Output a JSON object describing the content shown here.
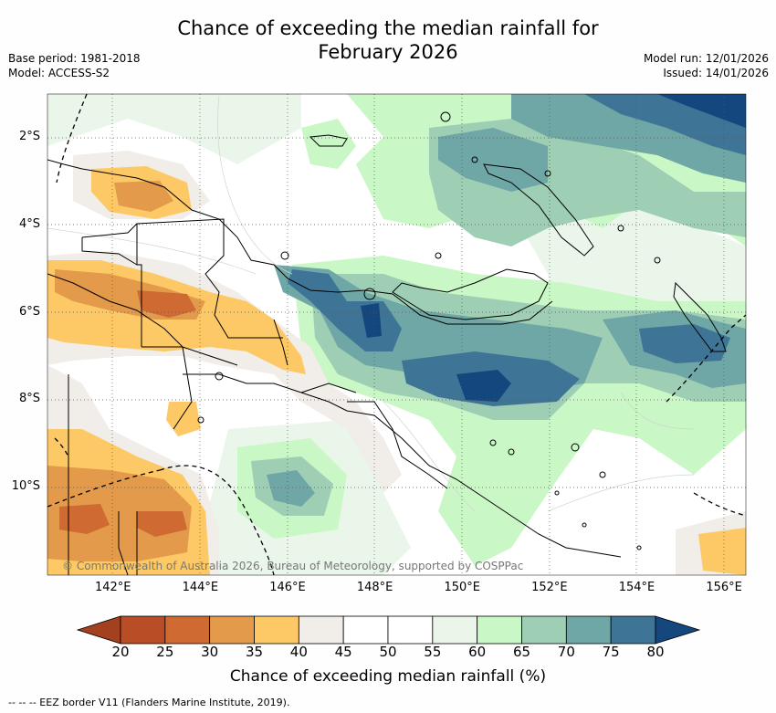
{
  "title_line1": "Chance of exceeding the median rainfall for",
  "title_line2": "February 2026",
  "base_period": "Base period: 1981-2018",
  "model": "Model: ACCESS-S2",
  "model_run": "Model run: 12/01/2026",
  "issued": "Issued: 14/01/2026",
  "copyright": "© Commonwealth of Australia 2026, Bureau of Meteorology, supported by COSPPac",
  "footer": "--  --  -- EEZ border V11 (Flanders Marine Institute, 2019).",
  "map": {
    "lon_range": [
      140.5,
      156.5
    ],
    "lat_range": [
      -12.0,
      -1.0
    ],
    "lat_ticks": [
      {
        "value": -2,
        "label": "2°S"
      },
      {
        "value": -4,
        "label": "4°S"
      },
      {
        "value": -6,
        "label": "6°S"
      },
      {
        "value": -8,
        "label": "8°S"
      },
      {
        "value": -10,
        "label": "10°S"
      }
    ],
    "lon_ticks": [
      {
        "value": 142,
        "label": "142°E"
      },
      {
        "value": 144,
        "label": "144°E"
      },
      {
        "value": 146,
        "label": "146°E"
      },
      {
        "value": 148,
        "label": "148°E"
      },
      {
        "value": 150,
        "label": "150°E"
      },
      {
        "value": 152,
        "label": "152°E"
      },
      {
        "value": 154,
        "label": "154°E"
      },
      {
        "value": 156,
        "label": "156°E"
      }
    ],
    "grid": "dotted"
  },
  "colorbar": {
    "title": "Chance of exceeding median rainfall (%)",
    "ticks": [
      "20",
      "25",
      "30",
      "35",
      "40",
      "45",
      "50",
      "55",
      "60",
      "65",
      "70",
      "75",
      "80"
    ],
    "colors": [
      "#a3401f",
      "#b84d26",
      "#cf6a32",
      "#e39a4a",
      "#fdc966",
      "#f1ede8",
      "#ffffff",
      "#ffffff",
      "#eaf6e9",
      "#c9f7c5",
      "#9ecfb4",
      "#6fa6a6",
      "#3e7597",
      "#13477d"
    ]
  },
  "colors": {
    "sea_white": "#ffffff",
    "coast": "#000000"
  }
}
